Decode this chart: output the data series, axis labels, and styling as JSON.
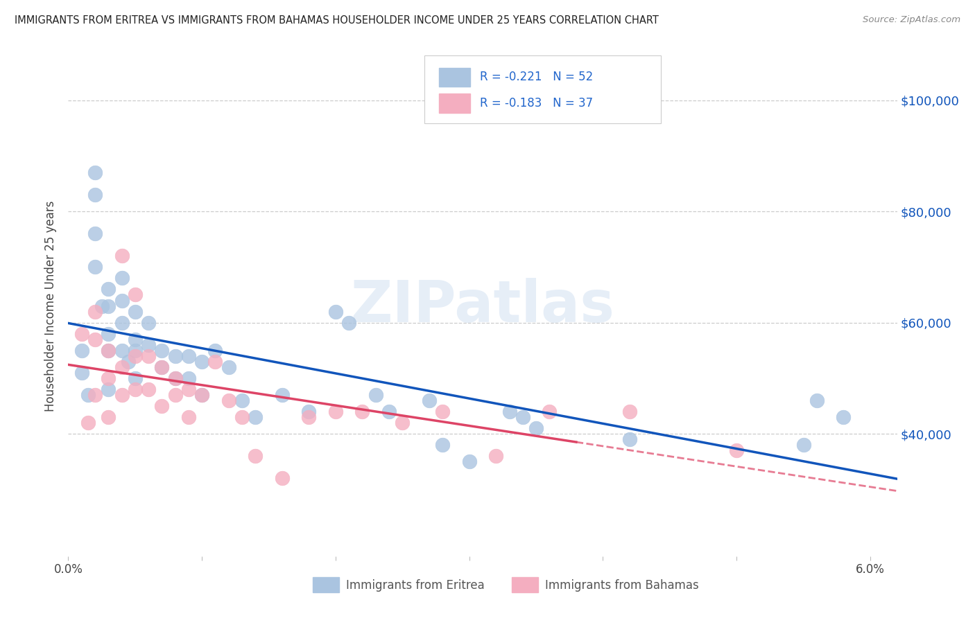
{
  "title": "IMMIGRANTS FROM ERITREA VS IMMIGRANTS FROM BAHAMAS HOUSEHOLDER INCOME UNDER 25 YEARS CORRELATION CHART",
  "source": "Source: ZipAtlas.com",
  "ylabel": "Householder Income Under 25 years",
  "xlim": [
    0.0,
    0.062
  ],
  "ylim": [
    18000,
    108000
  ],
  "xticks": [
    0.0,
    0.01,
    0.02,
    0.03,
    0.04,
    0.05,
    0.06
  ],
  "xticklabels": [
    "0.0%",
    "",
    "",
    "",
    "",
    "",
    "6.0%"
  ],
  "ytick_positions": [
    40000,
    60000,
    80000,
    100000
  ],
  "ytick_labels": [
    "$40,000",
    "$60,000",
    "$80,000",
    "$100,000"
  ],
  "grid_lines": [
    40000,
    60000,
    80000,
    100000
  ],
  "eritrea_color": "#aac4e0",
  "bahamas_color": "#f4aec0",
  "eritrea_line_color": "#1155bb",
  "bahamas_line_color": "#dd4466",
  "eritrea_R": "-0.221",
  "eritrea_N": "52",
  "bahamas_R": "-0.183",
  "bahamas_N": "37",
  "watermark": "ZIPatlas",
  "legend_R_color": "#2266cc",
  "title_color": "#222222",
  "source_color": "#888888",
  "label_color": "#444444",
  "eritrea_label": "Immigrants from Eritrea",
  "bahamas_label": "Immigrants from Bahamas",
  "eritrea_x": [
    0.001,
    0.001,
    0.0015,
    0.002,
    0.002,
    0.002,
    0.002,
    0.0025,
    0.003,
    0.003,
    0.003,
    0.003,
    0.003,
    0.004,
    0.004,
    0.004,
    0.004,
    0.0045,
    0.005,
    0.005,
    0.005,
    0.005,
    0.006,
    0.006,
    0.007,
    0.007,
    0.008,
    0.008,
    0.009,
    0.009,
    0.01,
    0.01,
    0.011,
    0.012,
    0.013,
    0.014,
    0.016,
    0.018,
    0.02,
    0.021,
    0.023,
    0.024,
    0.027,
    0.028,
    0.03,
    0.033,
    0.034,
    0.035,
    0.042,
    0.055,
    0.056,
    0.058
  ],
  "eritrea_y": [
    55000,
    51000,
    47000,
    87000,
    83000,
    76000,
    70000,
    63000,
    66000,
    63000,
    58000,
    55000,
    48000,
    68000,
    64000,
    60000,
    55000,
    53000,
    62000,
    57000,
    55000,
    50000,
    60000,
    56000,
    55000,
    52000,
    54000,
    50000,
    54000,
    50000,
    53000,
    47000,
    55000,
    52000,
    46000,
    43000,
    47000,
    44000,
    62000,
    60000,
    47000,
    44000,
    46000,
    38000,
    35000,
    44000,
    43000,
    41000,
    39000,
    38000,
    46000,
    43000
  ],
  "bahamas_x": [
    0.001,
    0.0015,
    0.002,
    0.002,
    0.002,
    0.003,
    0.003,
    0.003,
    0.004,
    0.004,
    0.004,
    0.005,
    0.005,
    0.005,
    0.006,
    0.006,
    0.007,
    0.007,
    0.008,
    0.008,
    0.009,
    0.009,
    0.01,
    0.011,
    0.012,
    0.013,
    0.014,
    0.016,
    0.018,
    0.02,
    0.022,
    0.025,
    0.028,
    0.032,
    0.036,
    0.042,
    0.05
  ],
  "bahamas_y": [
    58000,
    42000,
    62000,
    57000,
    47000,
    55000,
    50000,
    43000,
    72000,
    52000,
    47000,
    65000,
    54000,
    48000,
    54000,
    48000,
    52000,
    45000,
    50000,
    47000,
    48000,
    43000,
    47000,
    53000,
    46000,
    43000,
    36000,
    32000,
    43000,
    44000,
    44000,
    42000,
    44000,
    36000,
    44000,
    44000,
    37000
  ]
}
